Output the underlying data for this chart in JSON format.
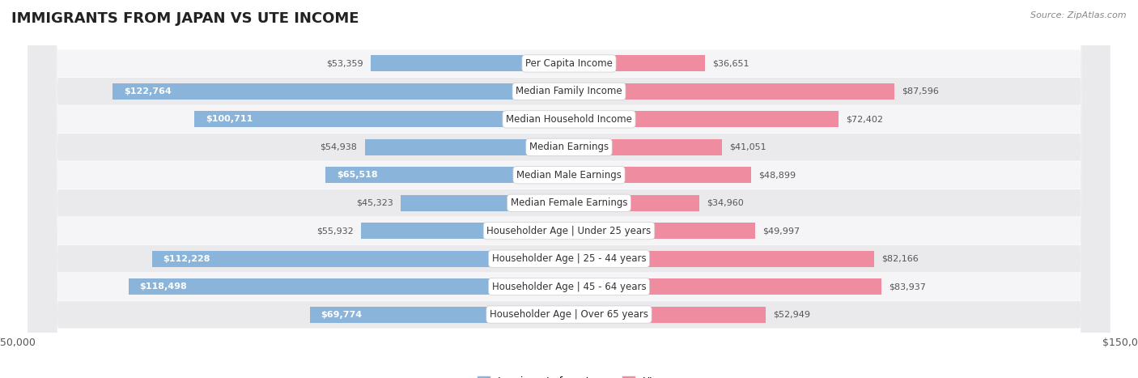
{
  "title": "IMMIGRANTS FROM JAPAN VS UTE INCOME",
  "source": "Source: ZipAtlas.com",
  "categories": [
    "Per Capita Income",
    "Median Family Income",
    "Median Household Income",
    "Median Earnings",
    "Median Male Earnings",
    "Median Female Earnings",
    "Householder Age | Under 25 years",
    "Householder Age | 25 - 44 years",
    "Householder Age | 45 - 64 years",
    "Householder Age | Over 65 years"
  ],
  "japan_values": [
    53359,
    122764,
    100711,
    54938,
    65518,
    45323,
    55932,
    112228,
    118498,
    69774
  ],
  "ute_values": [
    36651,
    87596,
    72402,
    41051,
    48899,
    34960,
    49997,
    82166,
    83937,
    52949
  ],
  "japan_labels": [
    "$53,359",
    "$122,764",
    "$100,711",
    "$54,938",
    "$65,518",
    "$45,323",
    "$55,932",
    "$112,228",
    "$118,498",
    "$69,774"
  ],
  "ute_labels": [
    "$36,651",
    "$87,596",
    "$72,402",
    "$41,051",
    "$48,899",
    "$34,960",
    "$49,997",
    "$82,166",
    "$83,937",
    "$52,949"
  ],
  "japan_color": "#8ab4d9",
  "ute_color": "#f08ca0",
  "max_value": 150000,
  "bar_height": 0.58,
  "background_color": "#ffffff",
  "row_color_even": "#f5f5f7",
  "row_color_odd": "#eaeaed",
  "legend_japan": "Immigrants from Japan",
  "legend_ute": "Ute",
  "xlim": 150000,
  "title_fontsize": 13,
  "label_fontsize": 8,
  "cat_fontsize": 8.5,
  "inside_threshold": 60000
}
